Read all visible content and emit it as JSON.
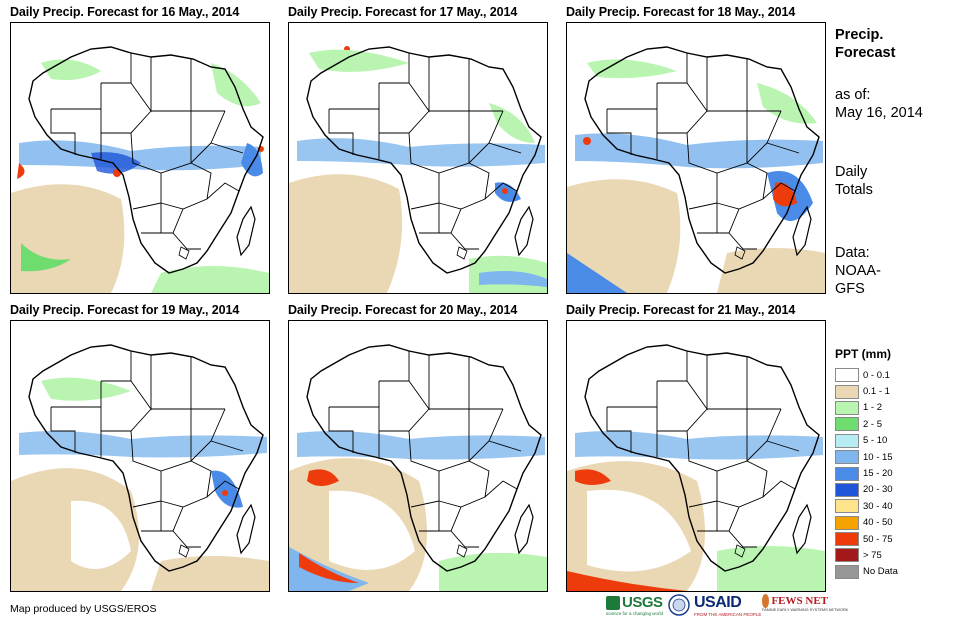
{
  "panels": [
    {
      "title": "Daily Precip. Forecast for 16 May., 2014"
    },
    {
      "title": "Daily Precip. Forecast for 17 May., 2014"
    },
    {
      "title": "Daily Precip. Forecast for 18 May., 2014"
    },
    {
      "title": "Daily Precip. Forecast for 19 May., 2014"
    },
    {
      "title": "Daily Precip. Forecast for 20 May., 2014"
    },
    {
      "title": "Daily Precip. Forecast for 21 May., 2014"
    }
  ],
  "sidebar": {
    "heading_line1": "Precip.",
    "heading_line2": "Forecast",
    "asof_label": "as of:",
    "asof_date": "May 16, 2014",
    "totals_line1": "Daily",
    "totals_line2": "Totals",
    "data_line1": "Data:",
    "data_line2": "NOAA-",
    "data_line3": "GFS"
  },
  "legend": {
    "title": "PPT (mm)",
    "items": [
      {
        "label": "0 - 0.1",
        "color": "#ffffff"
      },
      {
        "label": "0.1 - 1",
        "color": "#ead7b4"
      },
      {
        "label": "1 - 2",
        "color": "#b9f4b1"
      },
      {
        "label": "2 - 5",
        "color": "#6fdc6f"
      },
      {
        "label": "5 - 10",
        "color": "#b7ecf4"
      },
      {
        "label": "10 - 15",
        "color": "#7fb6ee"
      },
      {
        "label": "15 - 20",
        "color": "#4a8be8"
      },
      {
        "label": "20 - 30",
        "color": "#1f55d9"
      },
      {
        "label": "30 - 40",
        "color": "#fde48a"
      },
      {
        "label": "40 - 50",
        "color": "#f5a300"
      },
      {
        "label": "50 - 75",
        "color": "#ee3b0c"
      },
      {
        "label": "> 75",
        "color": "#a31818"
      },
      {
        "label": "No Data",
        "color": "#969696"
      }
    ]
  },
  "credit": "Map produced by USGS/EROS",
  "logos": {
    "usgs": "USGS",
    "usgs_tagline": "science for a changing world",
    "usaid": "USAID",
    "usaid_tagline": "FROM THE AMERICAN PEOPLE",
    "fewsnet": "FEWS NET",
    "fewsnet_tagline": "FAMINE EARLY WARNING SYSTEMS NETWORK"
  }
}
